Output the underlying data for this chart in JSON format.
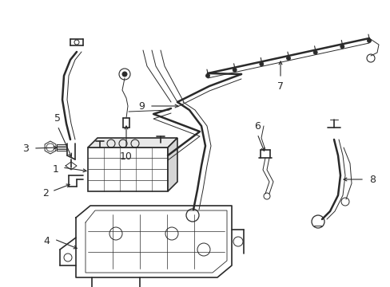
{
  "bg_color": "#ffffff",
  "line_color": "#2a2a2a",
  "fig_width": 4.89,
  "fig_height": 3.6,
  "dpi": 100,
  "label_fontsize": 9,
  "small_fontsize": 7
}
